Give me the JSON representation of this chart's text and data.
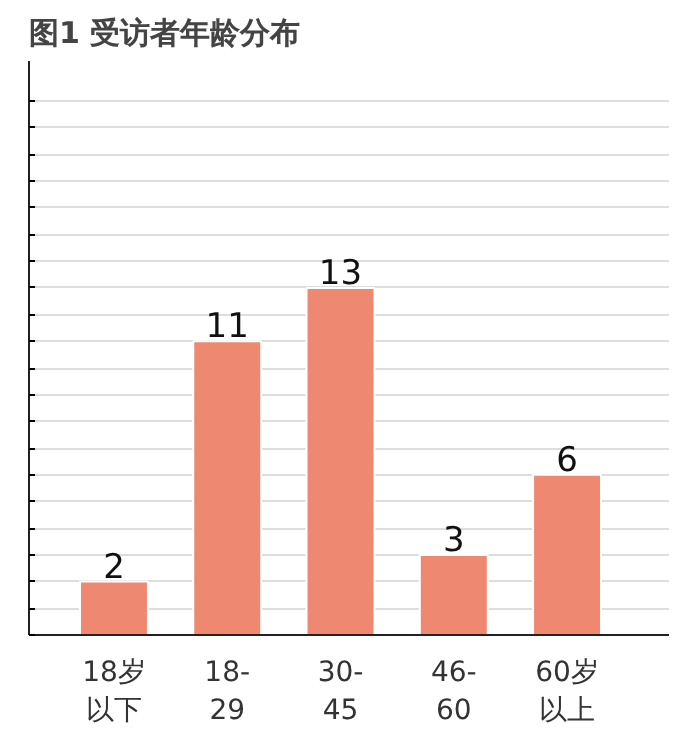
{
  "chart_data": {
    "type": "bar",
    "title": "图1 受访者年龄分布",
    "categories": [
      "18岁以下",
      "18-\n29",
      "30-\n45",
      "46-\n60",
      "60岁以上"
    ],
    "values": [
      2,
      11,
      13,
      3,
      6
    ],
    "color": "#ef8870",
    "data_labels": true,
    "ylim": [
      0,
      21.5
    ],
    "yticks": [
      {
        "value": 0,
        "label": null
      },
      {
        "value": 1,
        "label": null
      },
      {
        "value": 2,
        "label": null
      },
      {
        "value": 3,
        "label": null
      },
      {
        "value": 4,
        "label": null
      },
      {
        "value": 5,
        "label": null
      },
      {
        "value": 6,
        "label": null
      },
      {
        "value": 7,
        "label": null
      },
      {
        "value": 8,
        "label": null
      },
      {
        "value": 9,
        "label": null
      },
      {
        "value": 10,
        "label": null
      },
      {
        "value": 11,
        "label": null
      },
      {
        "value": 12,
        "label": null
      },
      {
        "value": 13,
        "label": null
      },
      {
        "value": 14,
        "label": null
      },
      {
        "value": 15,
        "label": null
      },
      {
        "value": 16,
        "label": null
      },
      {
        "value": 17,
        "label": null
      },
      {
        "value": 18,
        "label": null
      },
      {
        "value": 19,
        "label": null
      },
      {
        "value": 20,
        "label": null
      }
    ],
    "tick_labels": "x",
    "grid": "y"
  }
}
